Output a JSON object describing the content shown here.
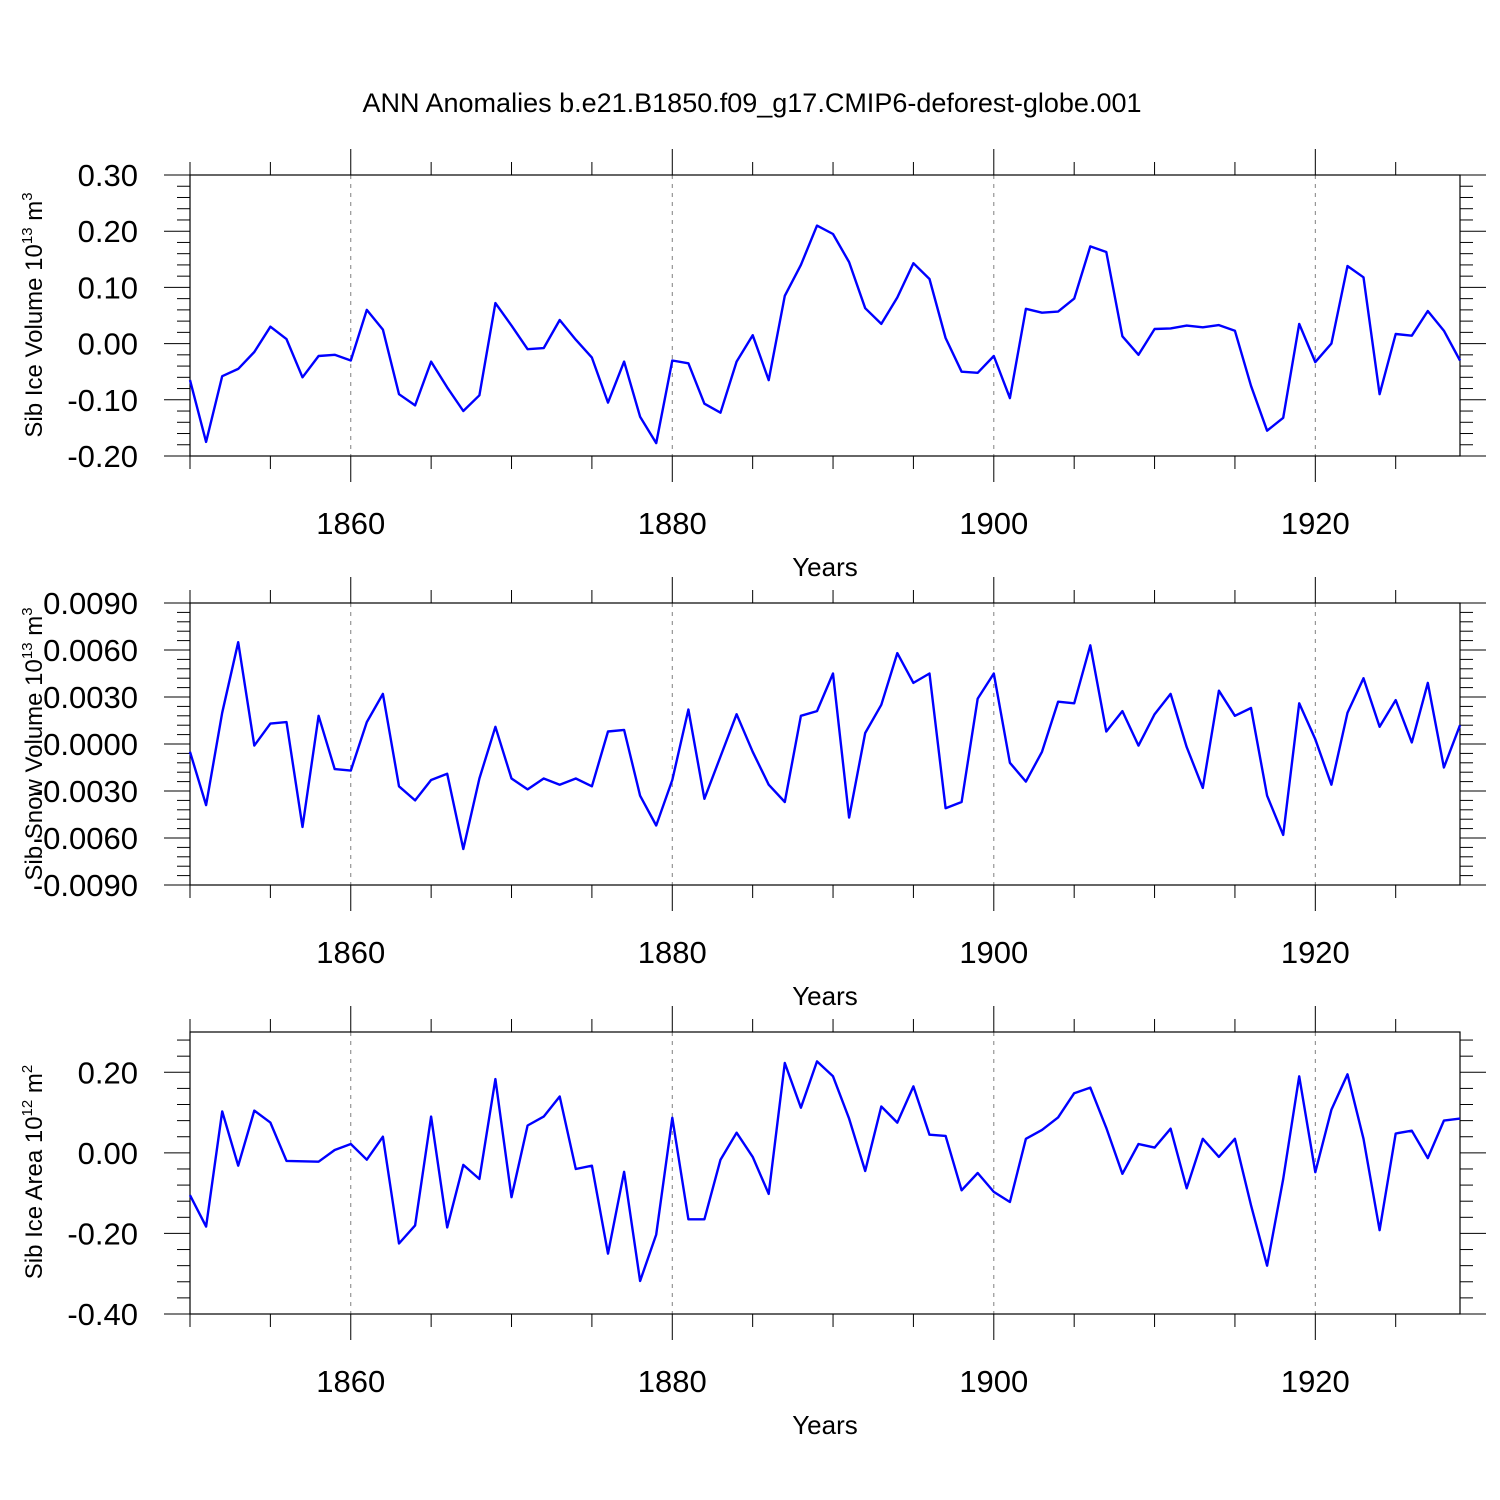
{
  "title": "ANN Anomalies b.e21.B1850.f09_g17.CMIP6-deforest-globe.001",
  "colors": {
    "line": "#0000ff",
    "axis": "#000000",
    "grid": "#808080"
  },
  "chart_data": [
    {
      "type": "line",
      "ylabel": "Sib Ice Volume 10",
      "ylabel_sup1": "13",
      "ylabel_unit": " m",
      "ylabel_sup2": "3",
      "xlabel": "Years",
      "xlim": [
        1850,
        1929
      ],
      "ylim": [
        -0.2,
        0.3
      ],
      "yticks": [
        -0.2,
        -0.1,
        0.0,
        0.1,
        0.2,
        0.3
      ],
      "ytick_labels": [
        "-0.20",
        "-0.10",
        "0.00",
        "0.10",
        "0.20",
        "0.30"
      ],
      "xticks": [
        1860,
        1880,
        1900,
        1920
      ],
      "xtick_labels": [
        "1860",
        "1880",
        "1900",
        "1920"
      ],
      "x_start": 1850,
      "series": [
        {
          "name": "Sib Ice Volume",
          "values": [
            -0.065,
            -0.175,
            -0.058,
            -0.045,
            -0.015,
            0.03,
            0.008,
            -0.06,
            -0.022,
            -0.02,
            -0.03,
            0.06,
            0.025,
            -0.09,
            -0.11,
            -0.032,
            -0.078,
            -0.12,
            -0.092,
            0.072,
            0.032,
            -0.01,
            -0.008,
            0.042,
            0.007,
            -0.025,
            -0.105,
            -0.032,
            -0.13,
            -0.177,
            -0.03,
            -0.035,
            -0.107,
            -0.123,
            -0.032,
            0.015,
            -0.065,
            0.085,
            0.14,
            0.21,
            0.195,
            0.145,
            0.063,
            0.035,
            0.082,
            0.143,
            0.115,
            0.01,
            -0.05,
            -0.052,
            -0.022,
            -0.097,
            0.062,
            0.055,
            0.057,
            0.08,
            0.173,
            0.163,
            0.013,
            -0.02,
            0.026,
            0.027,
            0.032,
            0.029,
            0.033,
            0.023,
            -0.075,
            -0.155,
            -0.132,
            0.035,
            -0.033,
            0.0,
            0.138,
            0.118,
            -0.09,
            0.017,
            0.014,
            0.058,
            0.023,
            -0.03
          ]
        }
      ]
    },
    {
      "type": "line",
      "ylabel": "Sib Snow Volume 10",
      "ylabel_sup1": "13",
      "ylabel_unit": " m",
      "ylabel_sup2": "3",
      "xlabel": "Years",
      "xlim": [
        1850,
        1929
      ],
      "ylim": [
        -0.009,
        0.009
      ],
      "yticks": [
        -0.009,
        -0.006,
        -0.003,
        0.0,
        0.003,
        0.006,
        0.009
      ],
      "ytick_labels": [
        "-0.0090",
        "-0.0060",
        "-0.0030",
        "0.0000",
        "0.0030",
        "0.0060",
        "0.0090"
      ],
      "xticks": [
        1860,
        1880,
        1900,
        1920
      ],
      "xtick_labels": [
        "1860",
        "1880",
        "1900",
        "1920"
      ],
      "x_start": 1850,
      "series": [
        {
          "name": "Sib Snow Volume",
          "values": [
            -0.0005,
            -0.0039,
            0.002,
            0.0065,
            -0.0001,
            0.0013,
            0.0014,
            -0.0053,
            0.0018,
            -0.0016,
            -0.0017,
            0.0014,
            0.0032,
            -0.0027,
            -0.0036,
            -0.0023,
            -0.0019,
            -0.0067,
            -0.0022,
            0.0011,
            -0.0022,
            -0.0029,
            -0.0022,
            -0.0026,
            -0.0022,
            -0.0027,
            0.0008,
            0.0009,
            -0.0033,
            -0.0052,
            -0.0023,
            0.0022,
            -0.0035,
            -0.0008,
            0.0019,
            -0.0005,
            -0.0026,
            -0.0037,
            0.0018,
            0.0021,
            0.0045,
            -0.0047,
            0.0007,
            0.0025,
            0.0058,
            0.0039,
            0.0045,
            -0.0041,
            -0.0037,
            0.0029,
            0.0045,
            -0.0012,
            -0.0024,
            -0.0005,
            0.0027,
            0.0026,
            0.0063,
            0.0008,
            0.0021,
            -0.0001,
            0.0019,
            0.0032,
            -0.0002,
            -0.0028,
            0.0034,
            0.0018,
            0.0023,
            -0.0033,
            -0.0058,
            0.0026,
            0.0003,
            -0.0026,
            0.002,
            0.0042,
            0.0011,
            0.0028,
            0.0001,
            0.0039,
            -0.0015,
            0.0012
          ]
        }
      ]
    },
    {
      "type": "line",
      "ylabel": "Sib Ice Area 10",
      "ylabel_sup1": "12",
      "ylabel_unit": " m",
      "ylabel_sup2": "2",
      "xlabel": "Years",
      "xlim": [
        1850,
        1929
      ],
      "ylim": [
        -0.4,
        0.3
      ],
      "yticks": [
        -0.4,
        -0.2,
        0.0,
        0.2
      ],
      "ytick_labels": [
        "-0.40",
        "-0.20",
        "0.00",
        "0.20"
      ],
      "xticks": [
        1860,
        1880,
        1900,
        1920
      ],
      "xtick_labels": [
        "1860",
        "1880",
        "1900",
        "1920"
      ],
      "x_start": 1850,
      "series": [
        {
          "name": "Sib Ice Area",
          "values": [
            -0.105,
            -0.183,
            0.103,
            -0.032,
            0.105,
            0.075,
            -0.02,
            -0.021,
            -0.022,
            0.007,
            0.022,
            -0.017,
            0.04,
            -0.225,
            -0.18,
            0.09,
            -0.185,
            -0.03,
            -0.065,
            0.183,
            -0.11,
            0.068,
            0.09,
            0.14,
            -0.04,
            -0.032,
            -0.25,
            -0.047,
            -0.318,
            -0.203,
            0.087,
            -0.165,
            -0.165,
            -0.017,
            0.05,
            -0.01,
            -0.102,
            0.223,
            0.112,
            0.227,
            0.19,
            0.085,
            -0.045,
            0.115,
            0.075,
            0.165,
            0.045,
            0.042,
            -0.093,
            -0.05,
            -0.097,
            -0.122,
            0.035,
            0.057,
            0.088,
            0.148,
            0.162,
            0.062,
            -0.052,
            0.022,
            0.013,
            0.06,
            -0.088,
            0.035,
            -0.01,
            0.035,
            -0.13,
            -0.28,
            -0.065,
            0.19,
            -0.048,
            0.107,
            0.195,
            0.035,
            -0.192,
            0.048,
            0.055,
            -0.013,
            0.08,
            0.085
          ]
        }
      ]
    }
  ]
}
